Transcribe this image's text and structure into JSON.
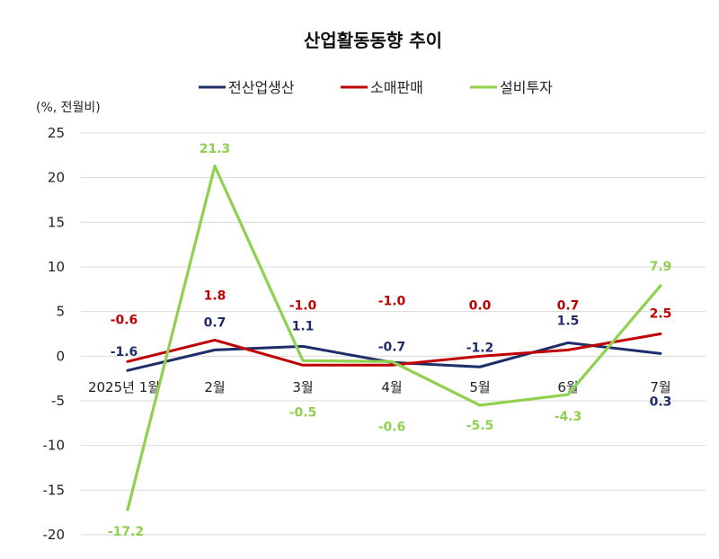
{
  "chart_data": {
    "type": "line",
    "title": "산업활동동향 추이",
    "ylabel": "(%, 전월비)",
    "xlabel": "",
    "categories": [
      "2025년 1월",
      "2월",
      "3월",
      "4월",
      "5월",
      "6월",
      "7월"
    ],
    "yticks": [
      25,
      20,
      15,
      10,
      5,
      0,
      -5,
      -10,
      -15,
      -20
    ],
    "ylim": [
      -20,
      25
    ],
    "grid": true,
    "legend_position": "top",
    "series": [
      {
        "name": "전산업생산",
        "color": "#1f2d6b",
        "values": [
          -1.6,
          0.7,
          1.1,
          -0.7,
          -1.2,
          1.5,
          0.3
        ],
        "labels": [
          "-1.6",
          "0.7",
          "1.1",
          "-0.7",
          "-1.2",
          "1.5",
          "0.3"
        ]
      },
      {
        "name": "소매판매",
        "color": "#c00000",
        "values": [
          -0.6,
          1.8,
          -1.0,
          -1.0,
          0.0,
          0.7,
          2.5
        ],
        "labels": [
          "-0.6",
          "1.8",
          "-1.0",
          "-1.0",
          "0.0",
          "0.7",
          "2.5"
        ]
      },
      {
        "name": "설비투자",
        "color": "#8fd14f",
        "values": [
          -17.2,
          21.3,
          -0.5,
          -0.6,
          -5.5,
          -4.3,
          7.9
        ],
        "labels": [
          "-17.2",
          "21.3",
          "-0.5",
          "-0.6",
          "-5.5",
          "-4.3",
          "7.9"
        ]
      }
    ]
  }
}
